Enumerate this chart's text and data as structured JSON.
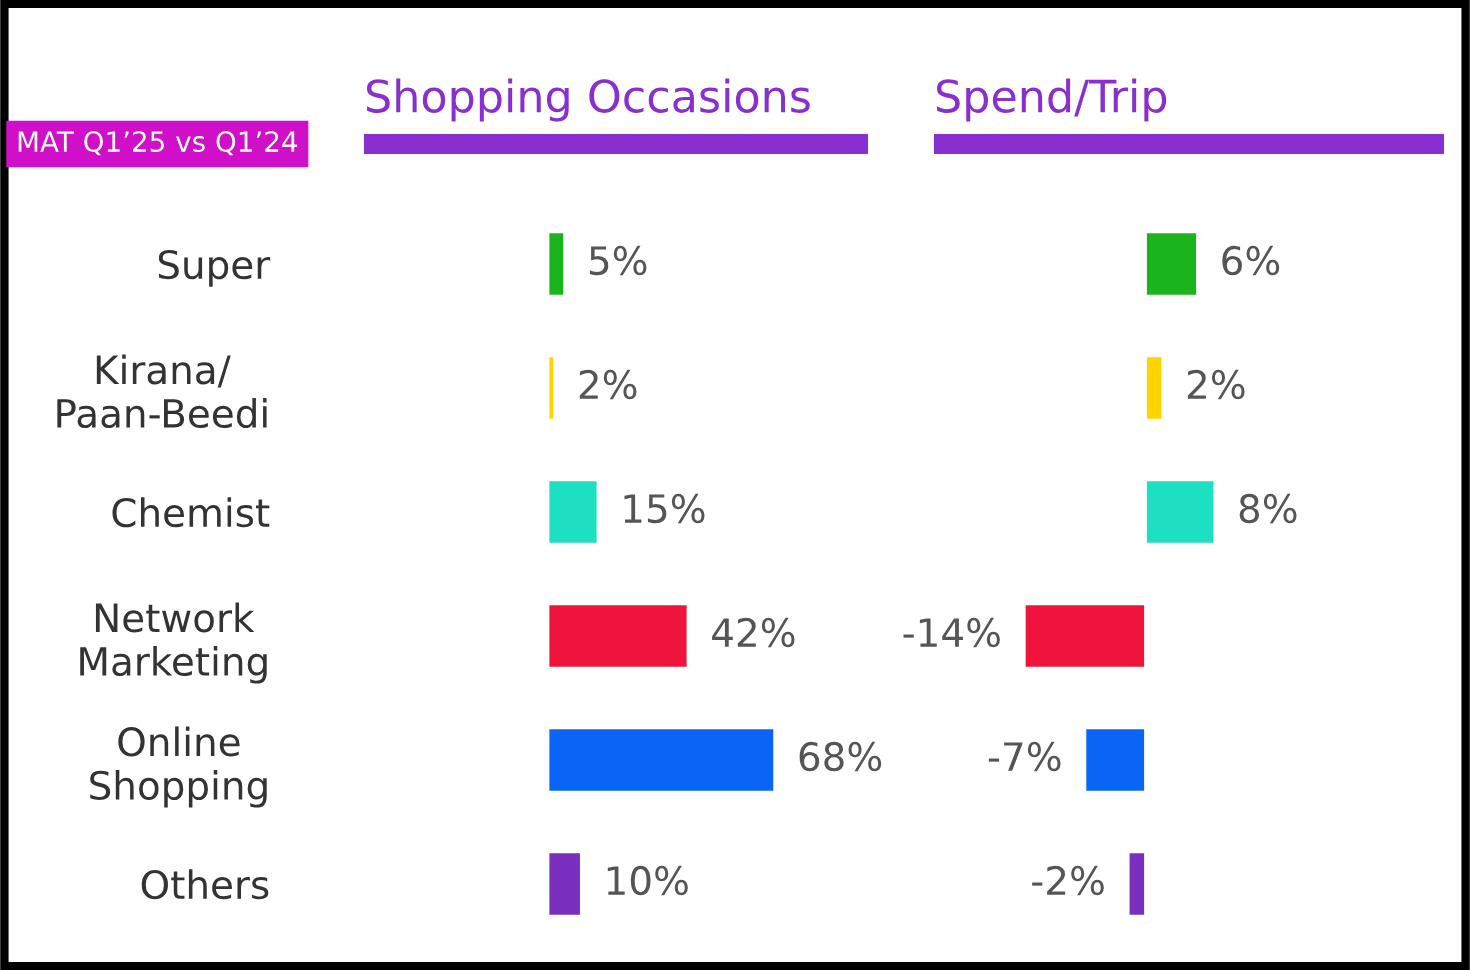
{
  "chart_data": [
    {
      "type": "bar",
      "orientation": "horizontal",
      "title": "Shopping Occasions",
      "annotations": [
        "MAT Q1’25 vs Q1’24"
      ],
      "categories": [
        "Super",
        "Kirana/\nPaan-Beedi",
        "Chemist",
        "Network\nMarketing",
        "Online\nShopping",
        "Others"
      ],
      "values": [
        5,
        2,
        15,
        42,
        68,
        10
      ],
      "value_labels": [
        "5%",
        "2%",
        "15%",
        "42%",
        "68%",
        "10%"
      ],
      "colors": [
        "#1cb41c",
        "#ffd400",
        "#1de0c3",
        "#f0143c",
        "#0a64f5",
        "#7a2fbf"
      ],
      "tick_labels": "y",
      "grid": false,
      "legend": false
    },
    {
      "type": "bar",
      "orientation": "horizontal",
      "title": "Spend/Trip",
      "values": [
        6,
        2,
        8,
        -14,
        -7,
        -2
      ],
      "value_labels": [
        "6%",
        "2%",
        "8%",
        "-14%",
        "-7%",
        "-2%"
      ],
      "colors": [
        "#1cb41c",
        "#ffd400",
        "#1de0c3",
        "#f0143c",
        "#0a64f5",
        "#7a2fbf"
      ],
      "tick_labels": false,
      "grid": false,
      "legend": false
    }
  ]
}
